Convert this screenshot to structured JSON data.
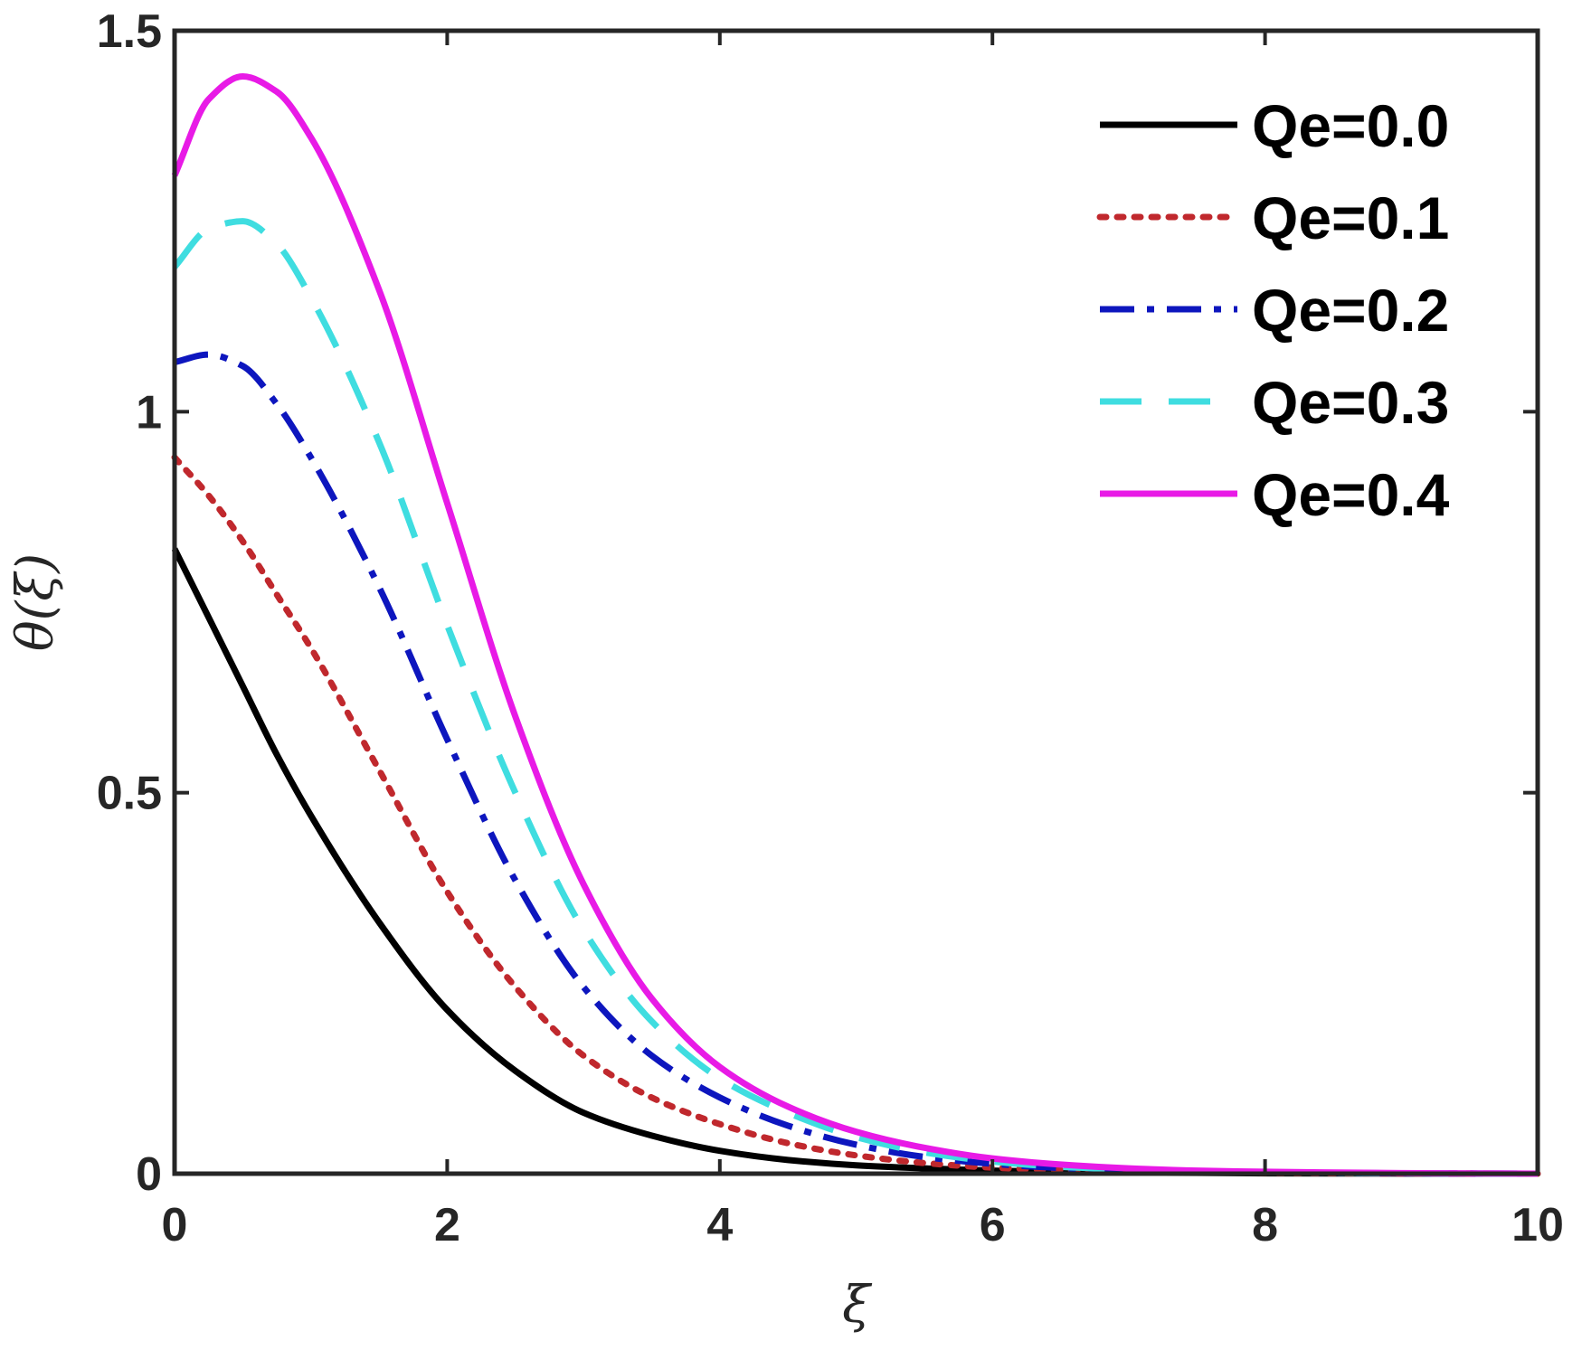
{
  "chart_data": {
    "type": "line",
    "title": "",
    "xlabel": "ξ",
    "ylabel": "θ(ξ)",
    "xlim": [
      0,
      10
    ],
    "ylim": [
      0,
      1.5
    ],
    "xticks": [
      0,
      2,
      4,
      6,
      8,
      10
    ],
    "yticks": [
      0,
      0.5,
      1,
      1.5
    ],
    "xtick_labels": [
      "0",
      "2",
      "4",
      "6",
      "8",
      "10"
    ],
    "ytick_labels": [
      "0",
      "0.5",
      "1",
      "1.5"
    ],
    "grid": false,
    "legend_position": "top-right",
    "x": [
      0,
      0.25,
      0.5,
      0.75,
      1,
      1.5,
      2,
      2.5,
      3,
      3.5,
      4,
      4.5,
      5,
      5.5,
      6,
      6.5,
      7,
      7.5,
      8,
      9,
      10
    ],
    "series": [
      {
        "name": "Qe=0.0",
        "color": "#000000",
        "dash": "solid",
        "values": [
          0.82,
          0.73,
          0.64,
          0.55,
          0.47,
          0.33,
          0.215,
          0.135,
          0.08,
          0.05,
          0.03,
          0.018,
          0.011,
          0.007,
          0.004,
          0.0025,
          0.0015,
          0.001,
          0.0005,
          0.0002,
          0.0
        ]
      },
      {
        "name": "Qe=0.1",
        "color": "#c0282d",
        "dash": "dotted",
        "values": [
          0.94,
          0.89,
          0.83,
          0.76,
          0.69,
          0.53,
          0.37,
          0.245,
          0.155,
          0.1,
          0.065,
          0.04,
          0.024,
          0.014,
          0.008,
          0.005,
          0.003,
          0.002,
          0.001,
          0.0003,
          0.0
        ]
      },
      {
        "name": "Qe=0.2",
        "color": "#0d16be",
        "dash": "dashdot",
        "values": [
          1.065,
          1.075,
          1.06,
          1.01,
          0.94,
          0.77,
          0.57,
          0.385,
          0.245,
          0.155,
          0.1,
          0.063,
          0.038,
          0.022,
          0.013,
          0.0075,
          0.0045,
          0.0025,
          0.0015,
          0.0005,
          0.0
        ]
      },
      {
        "name": "Qe=0.3",
        "color": "#3fdde0",
        "dash": "dashed",
        "values": [
          1.19,
          1.24,
          1.25,
          1.22,
          1.15,
          0.96,
          0.72,
          0.5,
          0.32,
          0.2,
          0.125,
          0.08,
          0.048,
          0.028,
          0.016,
          0.009,
          0.0055,
          0.003,
          0.0018,
          0.0006,
          0.0
        ]
      },
      {
        "name": "Qe=0.4",
        "color": "#e81ae6",
        "dash": "solid",
        "values": [
          1.31,
          1.41,
          1.44,
          1.42,
          1.36,
          1.16,
          0.88,
          0.6,
          0.38,
          0.23,
          0.14,
          0.088,
          0.055,
          0.034,
          0.02,
          0.012,
          0.007,
          0.004,
          0.0025,
          0.0008,
          0.0
        ]
      }
    ]
  }
}
